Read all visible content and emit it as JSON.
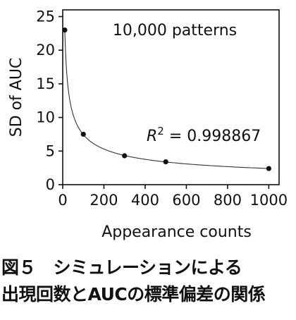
{
  "chart_data": {
    "type": "scatter",
    "title": "",
    "annotation": "10,000 patterns",
    "xlabel": "Appearance counts",
    "ylabel": "SD of AUC",
    "xlim": [
      0,
      1050
    ],
    "ylim": [
      0,
      26
    ],
    "x_ticks": [
      0,
      200,
      400,
      600,
      800,
      1000
    ],
    "x_tick_labels": [
      "0",
      "200",
      "400",
      "600",
      "800",
      "1000"
    ],
    "y_ticks": [
      0,
      5,
      10,
      15,
      20,
      25
    ],
    "y_tick_labels": [
      "0",
      "5",
      "10",
      "15",
      "20",
      "25"
    ],
    "points": [
      {
        "x": 10,
        "y": 23.0
      },
      {
        "x": 100,
        "y": 7.5
      },
      {
        "x": 300,
        "y": 4.3
      },
      {
        "x": 500,
        "y": 3.4
      },
      {
        "x": 1000,
        "y": 2.4
      }
    ],
    "fit": {
      "r2_symbol": "R",
      "r2_exponent": "2",
      "r2_text": " = 0.998867"
    },
    "grid": false
  },
  "caption": {
    "line1": "図５　シミュレーションによる",
    "line2": "出現回数とAUCの標準偏差の関係"
  }
}
